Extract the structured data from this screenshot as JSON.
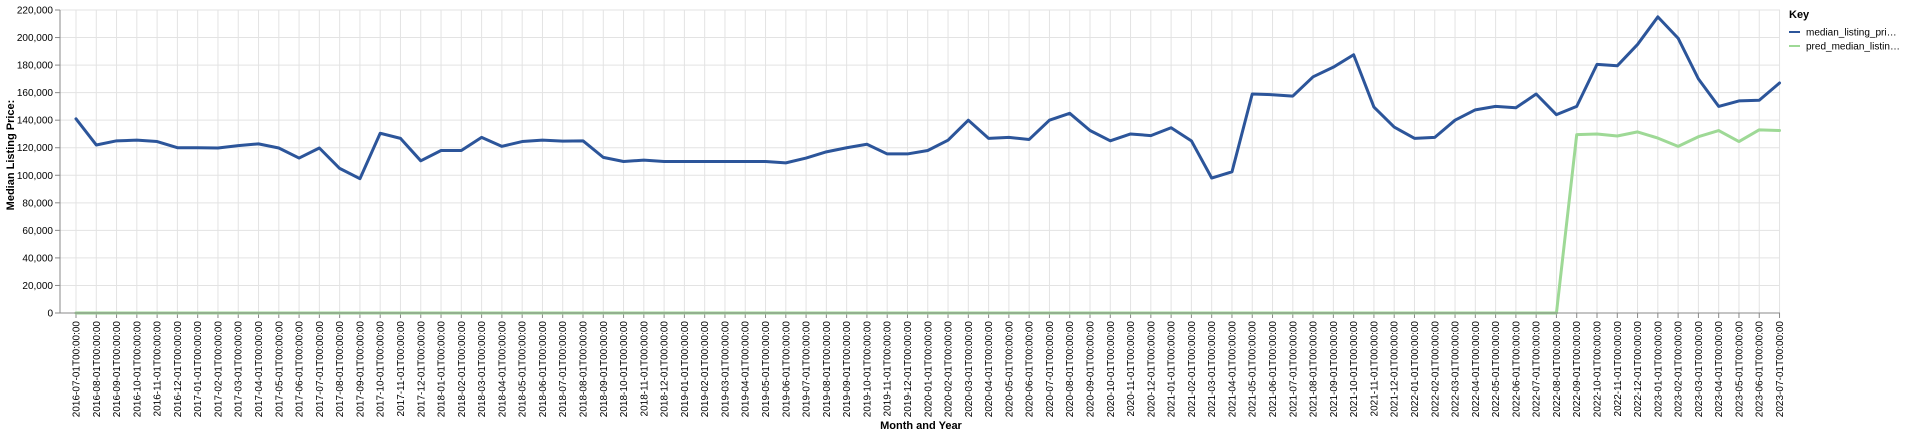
{
  "chart_data": {
    "type": "line",
    "xlabel": "Month and Year",
    "ylabel": "Median Listing Price:",
    "ylim": [
      0,
      220000
    ],
    "yticks": [
      0,
      20000,
      40000,
      60000,
      80000,
      100000,
      120000,
      140000,
      160000,
      180000,
      200000,
      220000
    ],
    "ytick_labels": [
      "0",
      "20,000",
      "40,000",
      "60,000",
      "80,000",
      "100,000",
      "120,000",
      "140,000",
      "160,000",
      "180,000",
      "200,000",
      "220,000"
    ],
    "grid": true,
    "legend_title": "Key",
    "legend_position": "top-right",
    "x": [
      "2016-07-01T00:00:00",
      "2016-08-01T00:00:00",
      "2016-09-01T00:00:00",
      "2016-10-01T00:00:00",
      "2016-11-01T00:00:00",
      "2016-12-01T00:00:00",
      "2017-01-01T00:00:00",
      "2017-02-01T00:00:00",
      "2017-03-01T00:00:00",
      "2017-04-01T00:00:00",
      "2017-05-01T00:00:00",
      "2017-06-01T00:00:00",
      "2017-07-01T00:00:00",
      "2017-08-01T00:00:00",
      "2017-09-01T00:00:00",
      "2017-10-01T00:00:00",
      "2017-11-01T00:00:00",
      "2017-12-01T00:00:00",
      "2018-01-01T00:00:00",
      "2018-02-01T00:00:00",
      "2018-03-01T00:00:00",
      "2018-04-01T00:00:00",
      "2018-05-01T00:00:00",
      "2018-06-01T00:00:00",
      "2018-07-01T00:00:00",
      "2018-08-01T00:00:00",
      "2018-09-01T00:00:00",
      "2018-10-01T00:00:00",
      "2018-11-01T00:00:00",
      "2018-12-01T00:00:00",
      "2019-01-01T00:00:00",
      "2019-02-01T00:00:00",
      "2019-03-01T00:00:00",
      "2019-04-01T00:00:00",
      "2019-05-01T00:00:00",
      "2019-06-01T00:00:00",
      "2019-07-01T00:00:00",
      "2019-08-01T00:00:00",
      "2019-09-01T00:00:00",
      "2019-10-01T00:00:00",
      "2019-11-01T00:00:00",
      "2019-12-01T00:00:00",
      "2020-01-01T00:00:00",
      "2020-02-01T00:00:00",
      "2020-03-01T00:00:00",
      "2020-04-01T00:00:00",
      "2020-05-01T00:00:00",
      "2020-06-01T00:00:00",
      "2020-07-01T00:00:00",
      "2020-08-01T00:00:00",
      "2020-09-01T00:00:00",
      "2020-10-01T00:00:00",
      "2020-11-01T00:00:00",
      "2020-12-01T00:00:00",
      "2021-01-01T00:00:00",
      "2021-02-01T00:00:00",
      "2021-03-01T00:00:00",
      "2021-04-01T00:00:00",
      "2021-05-01T00:00:00",
      "2021-06-01T00:00:00",
      "2021-07-01T00:00:00",
      "2021-08-01T00:00:00",
      "2021-09-01T00:00:00",
      "2021-10-01T00:00:00",
      "2021-11-01T00:00:00",
      "2021-12-01T00:00:00",
      "2022-01-01T00:00:00",
      "2022-02-01T00:00:00",
      "2022-03-01T00:00:00",
      "2022-04-01T00:00:00",
      "2022-05-01T00:00:00",
      "2022-06-01T00:00:00",
      "2022-07-01T00:00:00",
      "2022-08-01T00:00:00",
      "2022-09-01T00:00:00",
      "2022-10-01T00:00:00",
      "2022-11-01T00:00:00",
      "2022-12-01T00:00:00",
      "2023-01-01T00:00:00",
      "2023-02-01T00:00:00",
      "2023-03-01T00:00:00",
      "2023-04-01T00:00:00",
      "2023-05-01T00:00:00",
      "2023-06-01T00:00:00",
      "2023-07-01T00:00:00"
    ],
    "series": [
      {
        "name": "median_listing_pri…",
        "color": "#2c559a",
        "values": [
          141000,
          122000,
          125000,
          125500,
          124500,
          120000,
          120000,
          119800,
          121500,
          122800,
          119800,
          112500,
          119800,
          105000,
          97500,
          130500,
          126800,
          110500,
          118000,
          118000,
          127500,
          121000,
          124500,
          125500,
          124800,
          125000,
          113000,
          110000,
          111000,
          110000,
          110000,
          110000,
          110000,
          110000,
          110000,
          109000,
          112500,
          117000,
          120000,
          122500,
          115500,
          115500,
          118000,
          125500,
          140000,
          126800,
          127500,
          126000,
          140000,
          145000,
          132500,
          125000,
          130000,
          128800,
          134500,
          125000,
          98000,
          102500,
          159000,
          158500,
          157500,
          171500,
          178500,
          187500,
          149500,
          135000,
          126800,
          127500,
          140000,
          147500,
          150000,
          149000,
          159000,
          144000,
          150000,
          180500,
          179500,
          195000,
          215000,
          199500,
          170000,
          150000,
          154000,
          154500,
          167000
        ]
      },
      {
        "name": "pred_median_listin…",
        "color": "#9ed996",
        "values": [
          0,
          0,
          0,
          0,
          0,
          0,
          0,
          0,
          0,
          0,
          0,
          0,
          0,
          0,
          0,
          0,
          0,
          0,
          0,
          0,
          0,
          0,
          0,
          0,
          0,
          0,
          0,
          0,
          0,
          0,
          0,
          0,
          0,
          0,
          0,
          0,
          0,
          0,
          0,
          0,
          0,
          0,
          0,
          0,
          0,
          0,
          0,
          0,
          0,
          0,
          0,
          0,
          0,
          0,
          0,
          0,
          0,
          0,
          0,
          0,
          0,
          0,
          0,
          0,
          0,
          0,
          0,
          0,
          0,
          0,
          0,
          0,
          0,
          0,
          129500,
          130000,
          128500,
          131500,
          127000,
          121000,
          128000,
          132500,
          124500,
          133000,
          132500
        ]
      }
    ]
  }
}
